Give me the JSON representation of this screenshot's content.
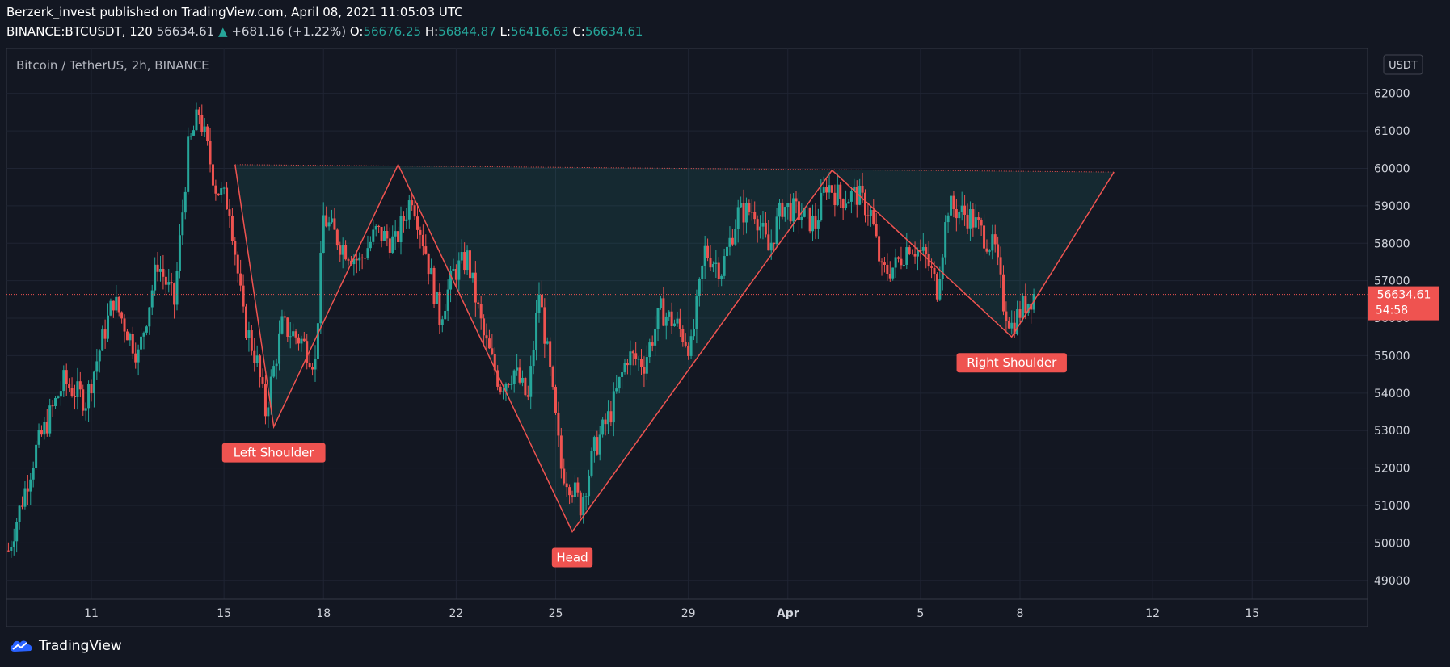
{
  "header": {
    "publisher_line": "Berzerk_invest published on TradingView.com, April 08, 2021 11:05:03 UTC",
    "symbol": "BINANCE:BTCUSDT, 120",
    "last": "56634.61",
    "change": "+681.16 (+1.22%)",
    "o_label": "O:",
    "o_value": "56676.25",
    "h_label": "H:",
    "h_value": "56844.87",
    "l_label": "L:",
    "l_value": "56416.63",
    "c_label": "C:",
    "c_value": "56634.61"
  },
  "chart_title": "Bitcoin / TetherUS, 2h, BINANCE",
  "currency_badge": "USDT",
  "price_tag": {
    "price": "56634.61",
    "countdown": "54:58"
  },
  "branding": "TradingView",
  "colors": {
    "up": "#26a69a",
    "down": "#ef5350",
    "pattern": "#ef5350",
    "fill": "#26a69a",
    "background": "#131722"
  },
  "chart_data": {
    "type": "candlestick",
    "title": "Bitcoin / TetherUS, 2h, BINANCE",
    "y_ticks": [
      49000,
      50000,
      51000,
      52000,
      53000,
      54000,
      55000,
      56000,
      57000,
      58000,
      59000,
      60000,
      61000,
      62000
    ],
    "ylim": [
      48500,
      63200
    ],
    "x_ticks": [
      {
        "label": "11",
        "date": "2021-03-11"
      },
      {
        "label": "15",
        "date": "2021-03-15"
      },
      {
        "label": "18",
        "date": "2021-03-18"
      },
      {
        "label": "22",
        "date": "2021-03-22"
      },
      {
        "label": "25",
        "date": "2021-03-25"
      },
      {
        "label": "29",
        "date": "2021-03-29"
      },
      {
        "label": "Apr",
        "date": "2021-04-01"
      },
      {
        "label": "5",
        "date": "2021-04-05"
      },
      {
        "label": "8",
        "date": "2021-04-08"
      },
      {
        "label": "12",
        "date": "2021-04-12"
      },
      {
        "label": "15",
        "date": "2021-04-15"
      }
    ],
    "last_price": 56634.61,
    "price_path": [
      {
        "date": "2021-03-08 12:00",
        "price": 49800
      },
      {
        "date": "2021-03-09 08:00",
        "price": 52500
      },
      {
        "date": "2021-03-10 04:00",
        "price": 54300
      },
      {
        "date": "2021-03-10 20:00",
        "price": 53800
      },
      {
        "date": "2021-03-11 16:00",
        "price": 56500
      },
      {
        "date": "2021-03-12 10:00",
        "price": 55000
      },
      {
        "date": "2021-03-13 00:00",
        "price": 57500
      },
      {
        "date": "2021-03-13 12:00",
        "price": 56400
      },
      {
        "date": "2021-03-13 22:00",
        "price": 60500
      },
      {
        "date": "2021-03-14 06:00",
        "price": 61500
      },
      {
        "date": "2021-03-14 18:00",
        "price": 59500
      },
      {
        "date": "2021-03-15 04:00",
        "price": 59000
      },
      {
        "date": "2021-03-15 14:00",
        "price": 56000
      },
      {
        "date": "2021-03-16 00:00",
        "price": 54800
      },
      {
        "date": "2021-03-16 06:00",
        "price": 53500
      },
      {
        "date": "2021-03-16 18:00",
        "price": 55800
      },
      {
        "date": "2021-03-17 08:00",
        "price": 55400
      },
      {
        "date": "2021-03-17 18:00",
        "price": 54800
      },
      {
        "date": "2021-03-18 00:00",
        "price": 58700
      },
      {
        "date": "2021-03-18 12:00",
        "price": 58000
      },
      {
        "date": "2021-03-19 02:00",
        "price": 57500
      },
      {
        "date": "2021-03-19 14:00",
        "price": 58300
      },
      {
        "date": "2021-03-20 04:00",
        "price": 58000
      },
      {
        "date": "2021-03-20 16:00",
        "price": 59300
      },
      {
        "date": "2021-03-21 02:00",
        "price": 57800
      },
      {
        "date": "2021-03-21 12:00",
        "price": 56000
      },
      {
        "date": "2021-03-21 22:00",
        "price": 57200
      },
      {
        "date": "2021-03-22 08:00",
        "price": 57600
      },
      {
        "date": "2021-03-22 20:00",
        "price": 55500
      },
      {
        "date": "2021-03-23 08:00",
        "price": 54200
      },
      {
        "date": "2021-03-23 18:00",
        "price": 54600
      },
      {
        "date": "2021-03-24 04:00",
        "price": 53800
      },
      {
        "date": "2021-03-24 12:00",
        "price": 56700
      },
      {
        "date": "2021-03-24 20:00",
        "price": 54500
      },
      {
        "date": "2021-03-25 04:00",
        "price": 52000
      },
      {
        "date": "2021-03-25 12:00",
        "price": 51500
      },
      {
        "date": "2021-03-25 18:00",
        "price": 51000
      },
      {
        "date": "2021-03-26 04:00",
        "price": 52500
      },
      {
        "date": "2021-03-26 16:00",
        "price": 53500
      },
      {
        "date": "2021-03-27 04:00",
        "price": 55000
      },
      {
        "date": "2021-03-27 16:00",
        "price": 54800
      },
      {
        "date": "2021-03-28 04:00",
        "price": 56200
      },
      {
        "date": "2021-03-28 16:00",
        "price": 55800
      },
      {
        "date": "2021-03-29 02:00",
        "price": 55200
      },
      {
        "date": "2021-03-29 12:00",
        "price": 57800
      },
      {
        "date": "2021-03-30 00:00",
        "price": 57300
      },
      {
        "date": "2021-03-30 12:00",
        "price": 58800
      },
      {
        "date": "2021-03-31 00:00",
        "price": 58900
      },
      {
        "date": "2021-03-31 10:00",
        "price": 57800
      },
      {
        "date": "2021-03-31 20:00",
        "price": 59000
      },
      {
        "date": "2021-04-01 08:00",
        "price": 58800
      },
      {
        "date": "2021-04-01 20:00",
        "price": 58500
      },
      {
        "date": "2021-04-02 04:00",
        "price": 59600
      },
      {
        "date": "2021-04-02 14:00",
        "price": 59200
      },
      {
        "date": "2021-04-03 02:00",
        "price": 59300
      },
      {
        "date": "2021-04-03 12:00",
        "price": 58800
      },
      {
        "date": "2021-04-03 20:00",
        "price": 57200
      },
      {
        "date": "2021-04-04 06:00",
        "price": 57400
      },
      {
        "date": "2021-04-04 16:00",
        "price": 58000
      },
      {
        "date": "2021-04-05 04:00",
        "price": 57600
      },
      {
        "date": "2021-04-05 12:00",
        "price": 56800
      },
      {
        "date": "2021-04-05 20:00",
        "price": 59000
      },
      {
        "date": "2021-04-06 12:00",
        "price": 58700
      },
      {
        "date": "2021-04-06 22:00",
        "price": 58200
      },
      {
        "date": "2021-04-07 06:00",
        "price": 57800
      },
      {
        "date": "2021-04-07 12:00",
        "price": 56400
      },
      {
        "date": "2021-04-07 18:00",
        "price": 55800
      },
      {
        "date": "2021-04-08 02:00",
        "price": 56300
      },
      {
        "date": "2021-04-08 10:00",
        "price": 56634.61
      }
    ],
    "pattern": {
      "name": "inverse head and shoulders",
      "labels": [
        "Left Shoulder",
        "Head",
        "Right Shoulder"
      ],
      "points": [
        {
          "date": "2021-03-15 08:00",
          "price": 60100
        },
        {
          "date": "2021-03-16 12:00",
          "price": 53100
        },
        {
          "date": "2021-03-20 06:00",
          "price": 60100
        },
        {
          "date": "2021-03-25 12:00",
          "price": 50300
        },
        {
          "date": "2021-04-02 08:00",
          "price": 59950
        },
        {
          "date": "2021-04-07 18:00",
          "price": 55500
        },
        {
          "date": "2021-04-10 20:00",
          "price": 59900
        }
      ],
      "neckline": {
        "start": {
          "date": "2021-03-15 08:00",
          "price": 60100
        },
        "end": {
          "date": "2021-04-10 20:00",
          "price": 59900
        }
      },
      "label_anchors": [
        {
          "label": "Left Shoulder",
          "date": "2021-03-16 12:00",
          "price": 53100
        },
        {
          "label": "Head",
          "date": "2021-03-25 12:00",
          "price": 50300
        },
        {
          "label": "Right Shoulder",
          "date": "2021-04-07 18:00",
          "price": 55500
        }
      ]
    }
  }
}
